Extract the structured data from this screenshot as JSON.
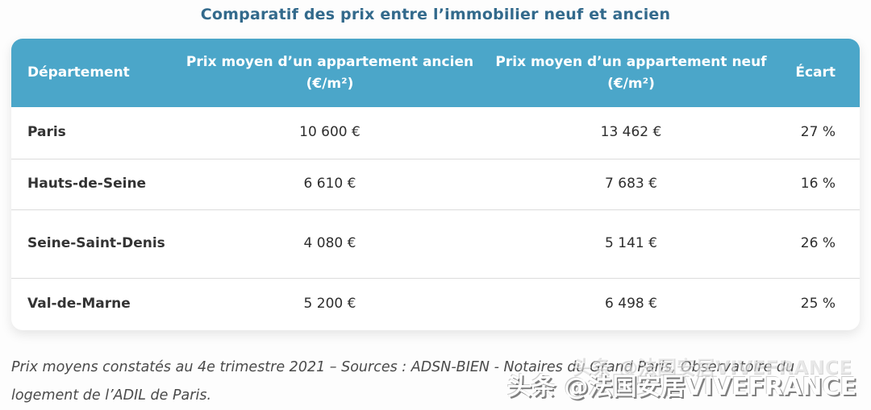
{
  "title": "Comparatif des prix entre l’immobilier neuf et ancien",
  "table": {
    "headers": [
      "Département",
      "Prix moyen d’un appartement ancien (€/m²)",
      "Prix moyen d’un appartement neuf (€/m²)",
      "Écart"
    ],
    "rows": [
      {
        "departement": "Paris",
        "ancien": "10 600 €",
        "neuf": "13 462 €",
        "ecart": "27 %"
      },
      {
        "departement": "Hauts-de-Seine",
        "ancien": "6 610 €",
        "neuf": "7 683 €",
        "ecart": "16 %"
      },
      {
        "departement": "Seine-Saint-Denis",
        "ancien": "4 080 €",
        "neuf": "5 141 €",
        "ecart": "26 %"
      },
      {
        "departement": "Val-de-Marne",
        "ancien": "5 200 €",
        "neuf": "6 498 €",
        "ecart": "25 %"
      }
    ]
  },
  "footer": {
    "note": "Prix moyens constatés au 4e trimestre 2021 – Sources : ADSN-BIEN - Notaires du Grand Paris, Observatoire du logement de l’ADIL de Paris."
  },
  "watermark": {
    "text": "头条 @法国安居VIVEFRANCE"
  },
  "colors": {
    "header_bg": "#4ba6c9",
    "header_text": "#ffffff",
    "title_text": "#336a8c",
    "body_text": "#2e2e2e",
    "row_separator": "#dcdcdc",
    "footer_text": "#4a4a4a",
    "watermark_text": "#ffffff"
  },
  "chart_data": {
    "type": "table",
    "title": "Comparatif des prix entre l’immobilier neuf et ancien",
    "columns": [
      "Département",
      "Prix moyen d’un appartement ancien (€/m²)",
      "Prix moyen d’un appartement neuf (€/m²)",
      "Écart"
    ],
    "rows": [
      [
        "Paris",
        10600,
        13462,
        "27 %"
      ],
      [
        "Hauts-de-Seine",
        6610,
        7683,
        "16 %"
      ],
      [
        "Seine-Saint-Denis",
        4080,
        5141,
        "26 %"
      ],
      [
        "Val-de-Marne",
        5200,
        6498,
        "25 %"
      ]
    ],
    "units": {
      "ancien": "€/m²",
      "neuf": "€/m²",
      "ecart": "%"
    },
    "note": "Prix moyens constatés au 4e trimestre 2021 – Sources : ADSN-BIEN - Notaires du Grand Paris, Observatoire du logement de l’ADIL de Paris."
  }
}
